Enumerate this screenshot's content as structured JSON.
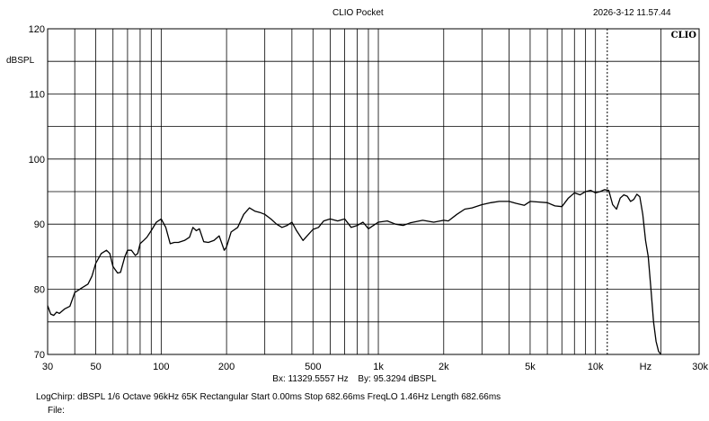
{
  "header": {
    "app_title": "CLIO Pocket",
    "timestamp": "2026-3-12 11.57.44"
  },
  "chart_data": {
    "type": "line",
    "title": "",
    "ylabel": "dBSPL",
    "xlabel": "Hz",
    "x_scale": "log",
    "xlim": [
      30,
      30000
    ],
    "ylim": [
      70,
      120
    ],
    "brand": "CLIO",
    "y_ticks": [
      70,
      80,
      90,
      100,
      110,
      120
    ],
    "x_ticks": [
      {
        "value": 30,
        "label": "30"
      },
      {
        "value": 50,
        "label": "50"
      },
      {
        "value": 100,
        "label": "100"
      },
      {
        "value": 200,
        "label": "200"
      },
      {
        "value": 500,
        "label": "500"
      },
      {
        "value": 1000,
        "label": "1k"
      },
      {
        "value": 2000,
        "label": "2k"
      },
      {
        "value": 5000,
        "label": "5k"
      },
      {
        "value": 10000,
        "label": "10k"
      },
      {
        "value": 30000,
        "label": "30k"
      }
    ],
    "grid": true,
    "cursor_x": 11329.5557,
    "series": [
      {
        "color": "#000000",
        "x": [
          30,
          31,
          32,
          33,
          34,
          36,
          38,
          40,
          43,
          46,
          48,
          50,
          53,
          56,
          58,
          60,
          63,
          65,
          68,
          70,
          73,
          76,
          78,
          80,
          83,
          86,
          90,
          95,
          100,
          105,
          110,
          115,
          120,
          128,
          135,
          140,
          145,
          150,
          157,
          165,
          175,
          185,
          195,
          200,
          210,
          225,
          240,
          255,
          270,
          285,
          300,
          320,
          340,
          360,
          380,
          400,
          420,
          450,
          470,
          500,
          530,
          560,
          600,
          650,
          700,
          750,
          800,
          850,
          900,
          950,
          1000,
          1100,
          1200,
          1300,
          1400,
          1500,
          1600,
          1800,
          2000,
          2100,
          2300,
          2500,
          2700,
          3000,
          3300,
          3600,
          4000,
          4300,
          4700,
          5000,
          5500,
          6000,
          6500,
          7000,
          7500,
          8000,
          8500,
          9000,
          9500,
          10000,
          10500,
          11000,
          11500,
          12000,
          12500,
          13000,
          13500,
          14000,
          14500,
          15000,
          15500,
          16000,
          16500,
          17000,
          17500,
          18000,
          18500,
          19000,
          19500,
          20000
        ],
        "y": [
          77.5,
          76.2,
          76.0,
          76.5,
          76.3,
          77.0,
          77.4,
          79.5,
          80.2,
          80.8,
          82.0,
          84.0,
          85.5,
          86.0,
          85.5,
          83.5,
          82.5,
          82.6,
          85.0,
          86.0,
          86.0,
          85.2,
          85.5,
          87.0,
          87.5,
          88.0,
          89.0,
          90.3,
          90.8,
          89.5,
          87.0,
          87.2,
          87.2,
          87.5,
          88.0,
          89.5,
          89.0,
          89.3,
          87.3,
          87.2,
          87.5,
          88.2,
          86.0,
          86.5,
          88.8,
          89.5,
          91.5,
          92.5,
          92.0,
          91.8,
          91.5,
          90.8,
          90.0,
          89.5,
          89.8,
          90.3,
          89.0,
          87.5,
          88.2,
          89.2,
          89.5,
          90.5,
          90.8,
          90.5,
          90.8,
          89.5,
          89.8,
          90.3,
          89.3,
          89.8,
          90.3,
          90.5,
          90.0,
          89.8,
          90.2,
          90.4,
          90.6,
          90.3,
          90.6,
          90.5,
          91.5,
          92.3,
          92.5,
          93.0,
          93.3,
          93.5,
          93.5,
          93.2,
          92.9,
          93.5,
          93.4,
          93.3,
          92.8,
          92.7,
          94.0,
          94.8,
          94.5,
          95.0,
          95.2,
          94.8,
          95.0,
          95.3,
          95.2,
          93.0,
          92.3,
          94.0,
          94.5,
          94.3,
          93.5,
          93.8,
          94.6,
          94.2,
          91.5,
          87.5,
          85.0,
          80.0,
          75.0,
          72.0,
          70.5,
          70.0
        ]
      }
    ]
  },
  "cursor_readout": {
    "bx": "Bx: 11329.5557 Hz",
    "by": "By: 95.3294 dBSPL"
  },
  "params_line": "LogChirp:  dBSPL   1/6 Octave   96kHz   65K   Rectangular   Start 0.00ms   Stop 682.66ms   FreqLO 1.46Hz   Length 682.66ms",
  "file_label": "File:"
}
